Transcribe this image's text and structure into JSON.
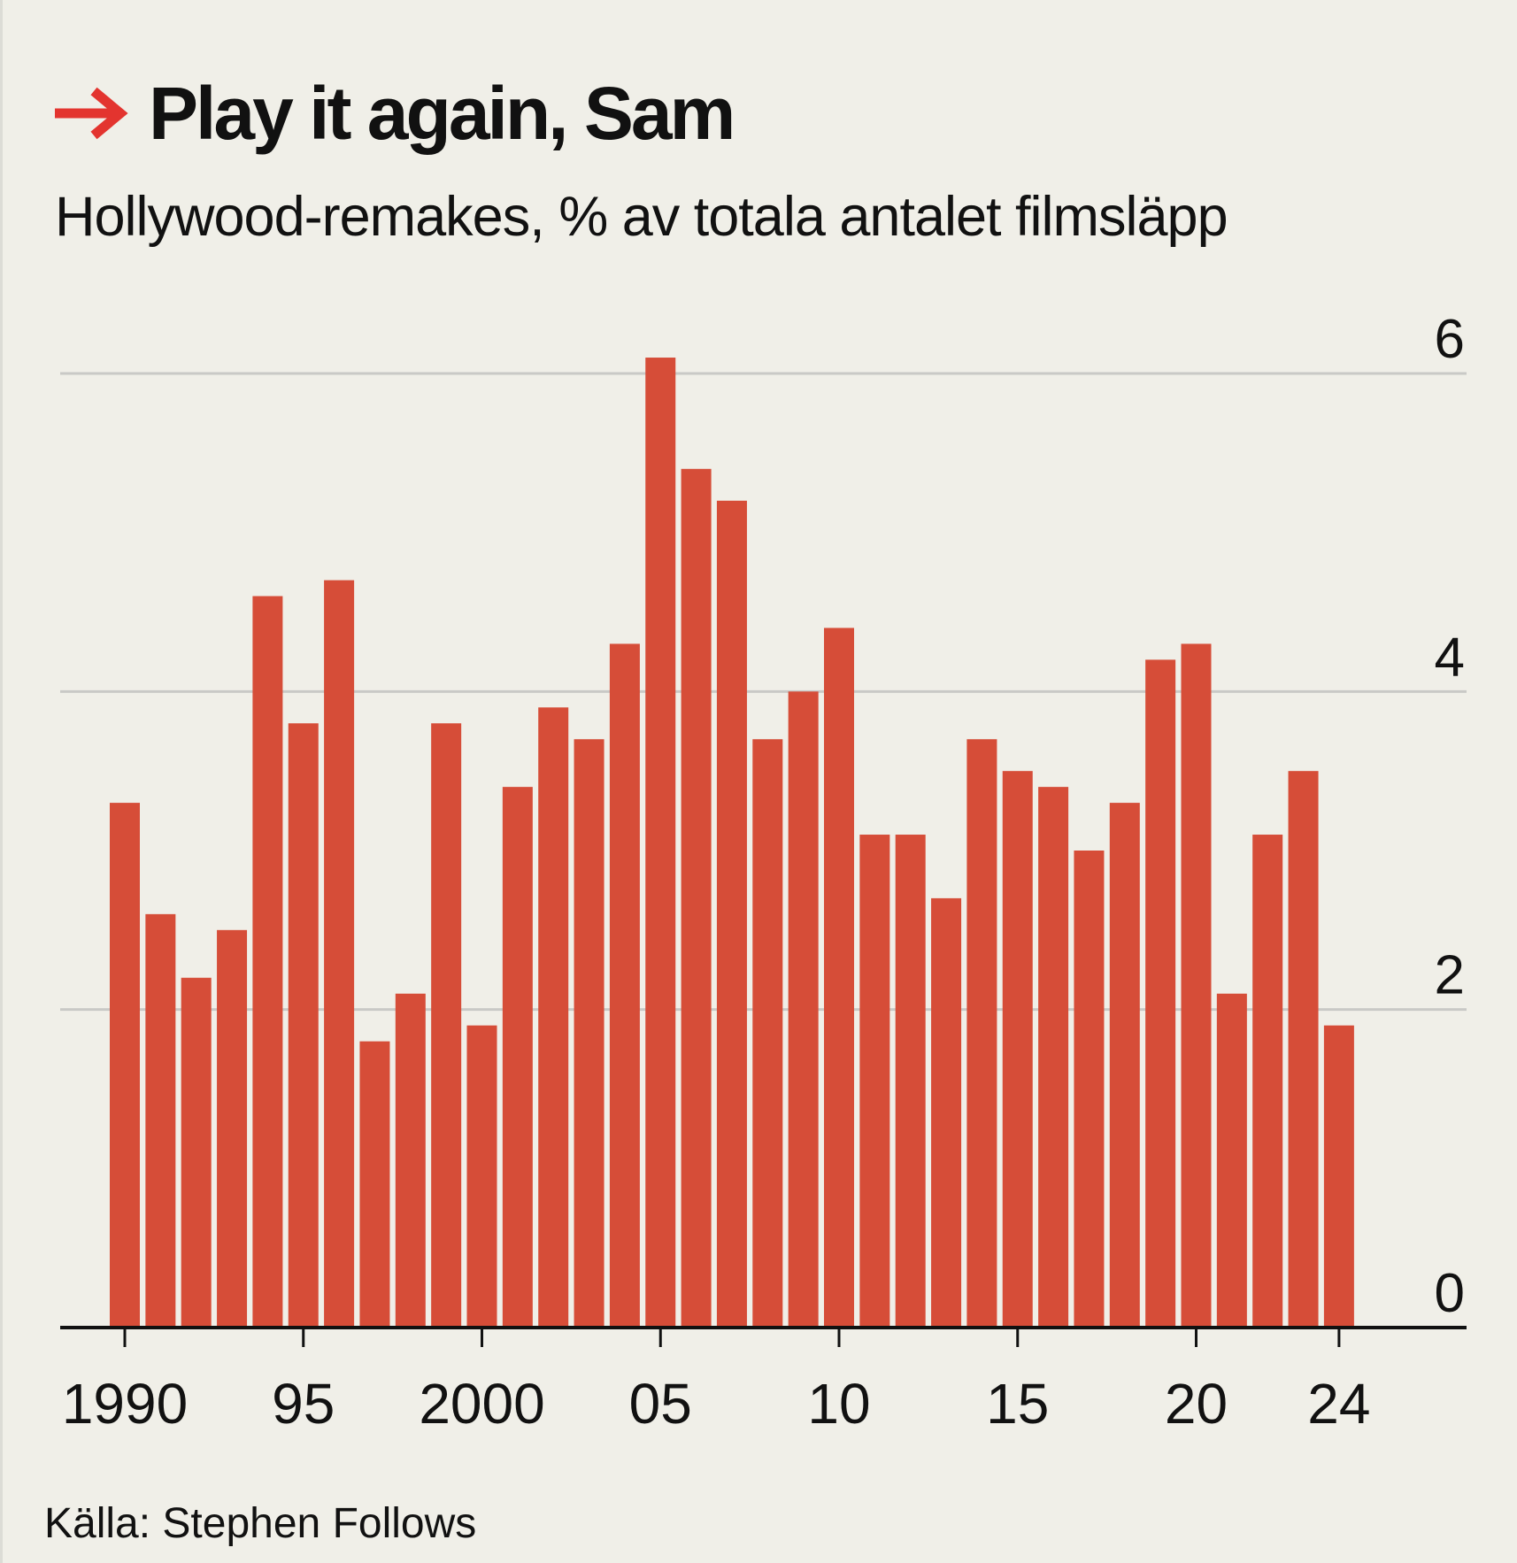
{
  "header": {
    "title": "Play it again, Sam",
    "subtitle": "Hollywood-remakes, % av totala antalet filmsläpp",
    "arrow_icon": "right-arrow-icon",
    "accent_color": "#e3342f"
  },
  "chart_data": {
    "type": "bar",
    "title": "Play it again, Sam",
    "subtitle": "Hollywood-remakes, % av totala antalet filmsläpp",
    "xlabel": "",
    "ylabel": "",
    "ylim": [
      0,
      6
    ],
    "yticks": [
      0,
      2,
      4,
      6
    ],
    "y_axis_side": "right",
    "grid": true,
    "bar_color": "#d64d38",
    "x": [
      1990,
      1991,
      1992,
      1993,
      1994,
      1995,
      1996,
      1997,
      1998,
      1999,
      2000,
      2001,
      2002,
      2003,
      2004,
      2005,
      2006,
      2007,
      2008,
      2009,
      2010,
      2011,
      2012,
      2013,
      2014,
      2015,
      2016,
      2017,
      2018,
      2019,
      2020,
      2021,
      2022,
      2023,
      2024
    ],
    "values": [
      3.3,
      2.6,
      2.2,
      2.5,
      4.6,
      3.8,
      4.7,
      1.8,
      2.1,
      3.8,
      1.9,
      3.4,
      3.9,
      3.7,
      4.3,
      6.1,
      5.4,
      5.2,
      3.7,
      4.0,
      4.4,
      3.1,
      3.1,
      2.7,
      3.7,
      3.5,
      3.4,
      3.0,
      3.3,
      4.2,
      4.3,
      2.1,
      3.1,
      3.5,
      1.9
    ],
    "xtick_labels": [
      {
        "year": 1990,
        "label": "1990"
      },
      {
        "year": 1995,
        "label": "95"
      },
      {
        "year": 2000,
        "label": "2000"
      },
      {
        "year": 2005,
        "label": "05"
      },
      {
        "year": 2010,
        "label": "10"
      },
      {
        "year": 2015,
        "label": "15"
      },
      {
        "year": 2020,
        "label": "20"
      },
      {
        "year": 2024,
        "label": "24"
      }
    ]
  },
  "footer": {
    "source": "Källa: Stephen Follows"
  }
}
